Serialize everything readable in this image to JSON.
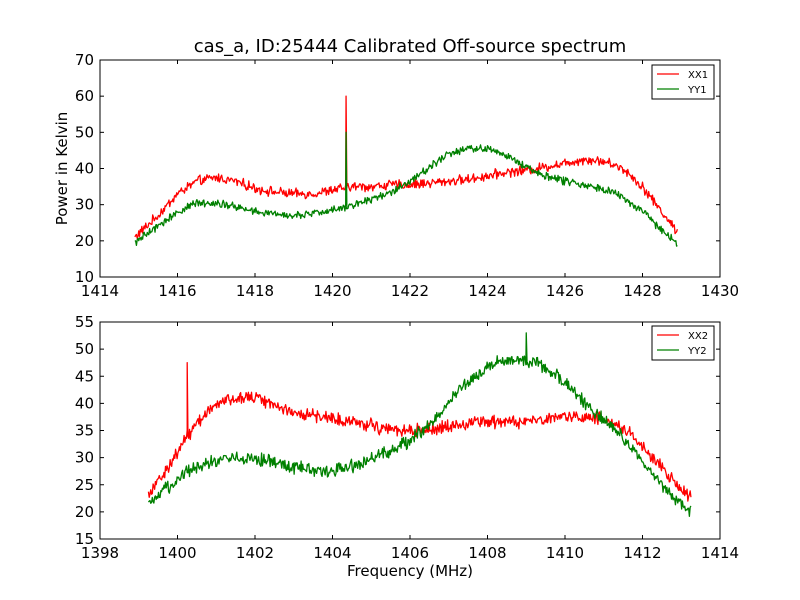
{
  "figure": {
    "title": "cas_a, ID:25444 Calibrated Off-source spectrum"
  },
  "chart_data": [
    {
      "type": "line",
      "title": "cas_a, ID:25444 Calibrated Off-source spectrum",
      "xlabel": "",
      "ylabel": "Power in Kelvin",
      "xlim": [
        1414,
        1430
      ],
      "ylim": [
        10,
        70
      ],
      "xticks": [
        "1414",
        "1416",
        "1418",
        "1420",
        "1422",
        "1424",
        "1426",
        "1428",
        "1430"
      ],
      "yticks": [
        "10",
        "20",
        "30",
        "40",
        "50",
        "60",
        "70"
      ],
      "legend": "top-right",
      "grid": false,
      "series": [
        {
          "name": "XX1",
          "color": "#ff0000",
          "noise": 1.0,
          "x": [
            1414.9,
            1415.5,
            1416.0,
            1416.5,
            1417.0,
            1417.5,
            1418.0,
            1418.5,
            1419.0,
            1419.5,
            1420.0,
            1420.2,
            1420.5,
            1421.0,
            1421.5,
            1422.0,
            1422.5,
            1423.0,
            1423.5,
            1424.0,
            1424.5,
            1425.0,
            1425.5,
            1426.0,
            1426.5,
            1427.0,
            1427.5,
            1428.0,
            1428.5,
            1428.9
          ],
          "values": [
            21,
            27,
            33,
            36.5,
            37.5,
            36.5,
            34.5,
            33.5,
            33,
            33,
            34,
            34.5,
            35,
            35,
            35.5,
            35.5,
            36,
            36.5,
            37,
            38,
            39,
            39.5,
            40.5,
            41.5,
            42.5,
            42,
            40,
            35,
            28,
            22.5
          ],
          "spike": {
            "x": 1420.35,
            "peak": 60
          }
        },
        {
          "name": "YY1",
          "color": "#008000",
          "noise": 0.8,
          "x": [
            1414.9,
            1415.5,
            1416.0,
            1416.5,
            1417.0,
            1417.5,
            1418.0,
            1418.5,
            1419.0,
            1419.5,
            1420.0,
            1420.2,
            1420.5,
            1421.0,
            1421.5,
            1422.0,
            1422.5,
            1423.0,
            1423.5,
            1424.0,
            1424.5,
            1425.0,
            1425.5,
            1426.0,
            1426.5,
            1427.0,
            1427.5,
            1428.0,
            1428.5,
            1428.9
          ],
          "values": [
            19.5,
            24,
            28,
            30.5,
            30.5,
            29.5,
            28,
            27.5,
            27,
            27.5,
            28.5,
            29,
            30,
            31.5,
            33.5,
            36.5,
            40.5,
            44,
            45.5,
            45.5,
            43.5,
            40.5,
            38,
            36.5,
            35.5,
            34.5,
            32,
            28,
            23,
            19
          ],
          "spike": {
            "x": 1420.35,
            "peak": 50
          }
        }
      ]
    },
    {
      "type": "line",
      "title": "",
      "xlabel": "Frequency (MHz)",
      "ylabel": "",
      "xlim": [
        1398,
        1414
      ],
      "ylim": [
        15,
        55
      ],
      "xticks": [
        "1398",
        "1400",
        "1402",
        "1404",
        "1406",
        "1408",
        "1410",
        "1412",
        "1414"
      ],
      "yticks": [
        "15",
        "20",
        "25",
        "30",
        "35",
        "40",
        "45",
        "50",
        "55"
      ],
      "legend": "top-right",
      "grid": false,
      "series": [
        {
          "name": "XX2",
          "color": "#ff0000",
          "noise": 0.9,
          "x": [
            1399.25,
            1399.75,
            1400.25,
            1400.75,
            1401.25,
            1401.75,
            1402.25,
            1402.75,
            1403.25,
            1403.75,
            1404.25,
            1404.75,
            1405.25,
            1405.75,
            1406.25,
            1406.75,
            1407.25,
            1407.75,
            1408.25,
            1408.75,
            1409.25,
            1409.75,
            1410.25,
            1410.75,
            1411.25,
            1411.75,
            1412.25,
            1412.75,
            1413.25
          ],
          "values": [
            23.5,
            28,
            34,
            38.5,
            40.5,
            41.5,
            40.5,
            39,
            38,
            37.5,
            37,
            36.5,
            35.5,
            35,
            35,
            35.5,
            36,
            36.5,
            36.5,
            36.5,
            37,
            37.5,
            37.5,
            37.5,
            36.5,
            34,
            30,
            26,
            22.5
          ],
          "spike": {
            "x": 1400.25,
            "peak": 47.5
          }
        },
        {
          "name": "YY2",
          "color": "#008000",
          "noise": 0.9,
          "x": [
            1399.25,
            1399.75,
            1400.25,
            1400.75,
            1401.25,
            1401.75,
            1402.25,
            1402.75,
            1403.25,
            1403.75,
            1404.25,
            1404.75,
            1405.25,
            1405.75,
            1406.25,
            1406.75,
            1407.25,
            1407.75,
            1408.25,
            1408.75,
            1409.25,
            1409.75,
            1410.25,
            1410.75,
            1411.25,
            1411.75,
            1412.25,
            1412.75,
            1413.25
          ],
          "values": [
            21,
            24.5,
            27.5,
            29,
            30,
            30,
            29.5,
            28.5,
            28,
            27.5,
            28,
            29,
            30.5,
            32,
            34.5,
            38,
            42.5,
            45.5,
            47.5,
            48,
            47.5,
            45.5,
            42,
            38.5,
            35.5,
            31.5,
            27,
            23,
            20
          ],
          "spike": {
            "x": 1409.0,
            "peak": 53
          }
        }
      ]
    }
  ]
}
